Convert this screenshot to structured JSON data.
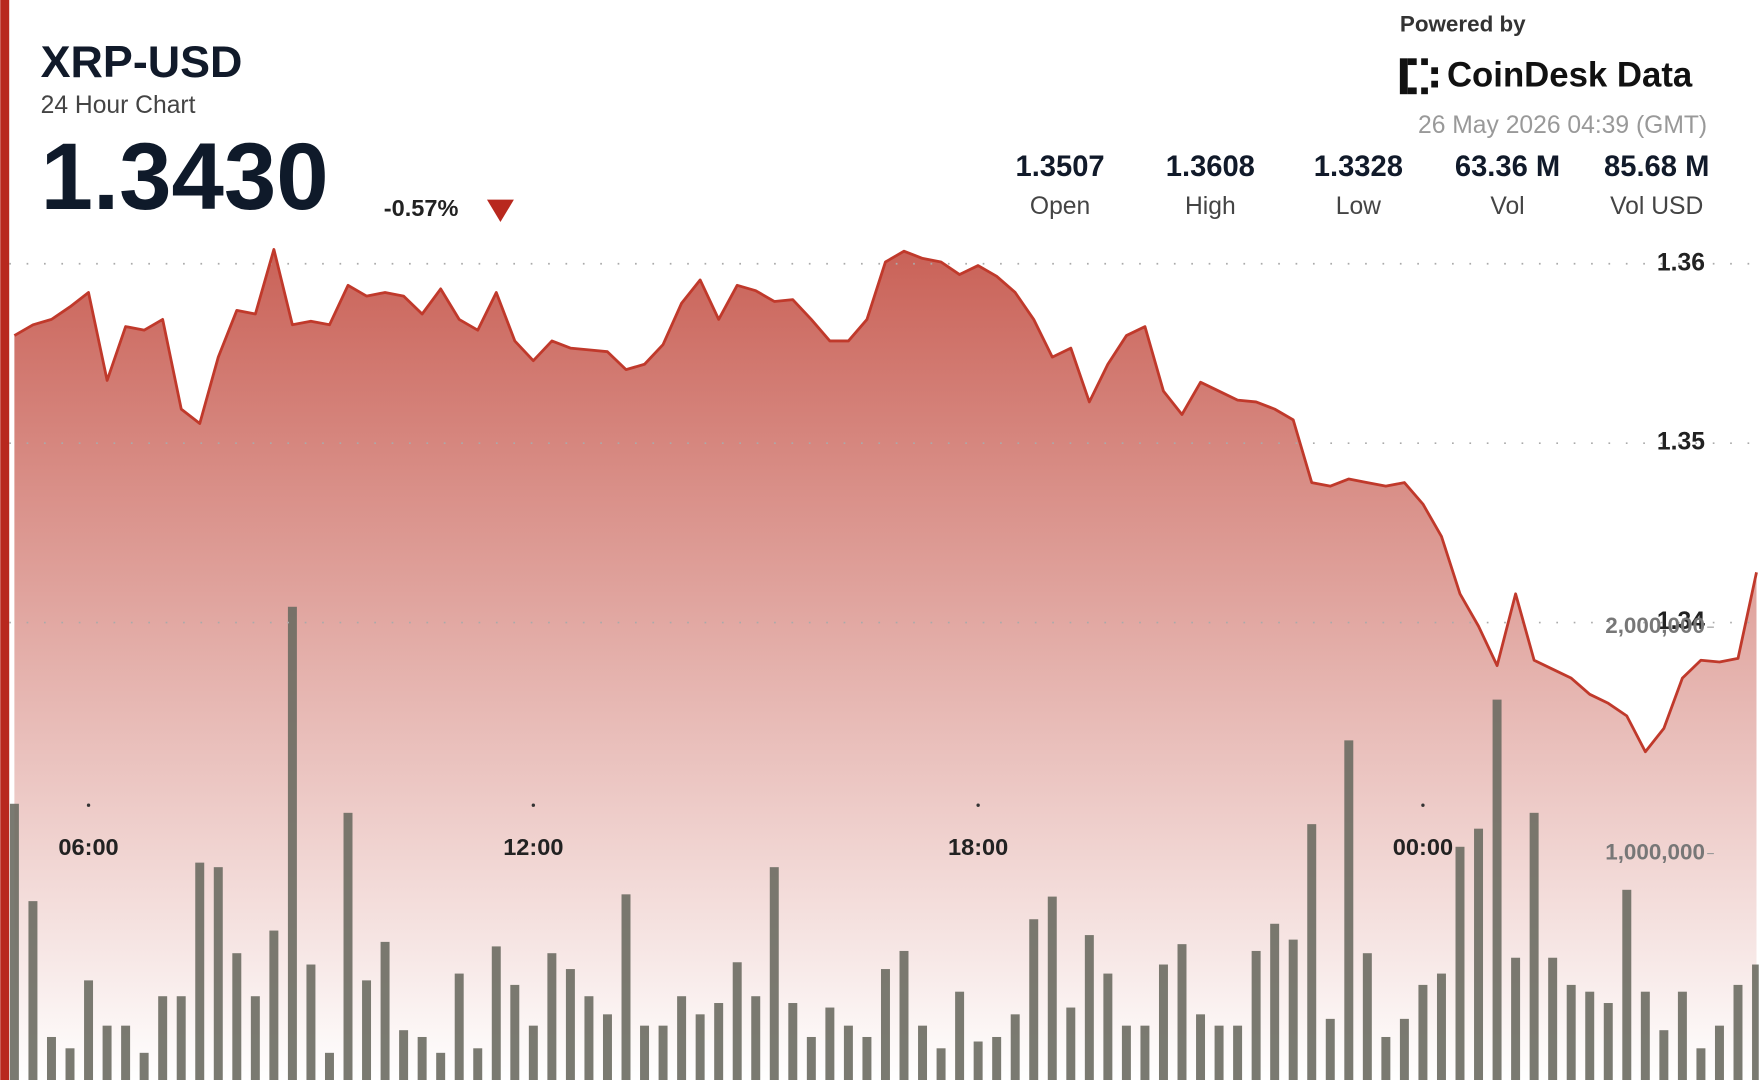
{
  "chart_data": {
    "type": "line",
    "title": "XRP-USD",
    "subtitle": "24 Hour Chart",
    "last_price": "1.3430",
    "change": "-0.57%",
    "powered_by": "Powered by",
    "brand": "CoinDesk Data",
    "timestamp": "26 May 2026 04:39 (GMT)",
    "stats": [
      {
        "value": "1.3507",
        "label": "Open"
      },
      {
        "value": "1.3608",
        "label": "High"
      },
      {
        "value": "1.3328",
        "label": "Low"
      },
      {
        "value": "63.36 M",
        "label": "Vol"
      },
      {
        "value": "85.68 M",
        "label": "Vol USD"
      }
    ],
    "x": [
      5,
      5.25,
      5.5,
      5.75,
      6,
      6.25,
      6.5,
      6.75,
      7,
      7.25,
      7.5,
      7.75,
      8,
      8.25,
      8.5,
      8.75,
      9,
      9.25,
      9.5,
      9.75,
      10,
      10.25,
      10.5,
      10.75,
      11,
      11.25,
      11.5,
      11.75,
      12,
      12.25,
      12.5,
      12.75,
      13,
      13.25,
      13.5,
      13.75,
      14,
      14.25,
      14.5,
      14.75,
      15,
      15.25,
      15.5,
      15.75,
      16,
      16.25,
      16.5,
      16.75,
      17,
      17.25,
      17.5,
      17.75,
      18,
      18.25,
      18.5,
      18.75,
      19,
      19.25,
      19.5,
      19.75,
      20,
      20.25,
      20.5,
      20.75,
      21,
      21.25,
      21.5,
      21.75,
      22,
      22.25,
      22.5,
      22.75,
      23,
      23.25,
      23.5,
      23.75,
      24,
      24.25,
      24.5,
      24.75,
      25,
      25.25,
      25.5,
      25.75,
      26,
      26.25,
      26.5,
      26.75,
      27,
      27.25,
      27.5,
      27.75,
      28,
      28.25,
      28.5
    ],
    "xlim": [
      4.93,
      28.53
    ],
    "xticks": [
      {
        "value": 6,
        "label": "06:00"
      },
      {
        "value": 12,
        "label": "12:00"
      },
      {
        "value": 18,
        "label": "18:00"
      },
      {
        "value": 24,
        "label": "00:00"
      }
    ],
    "ylim": [
      1.3145,
      1.3612
    ],
    "yticks": [
      1.34,
      1.35,
      1.36
    ],
    "y2lim": [
      0,
      3700000
    ],
    "y2ticks": [
      {
        "value": 1000000,
        "label": "1,000,000"
      },
      {
        "value": 2000000,
        "label": "2,000,000"
      }
    ],
    "grid": true,
    "series": [
      {
        "type": "line",
        "color": "#c0392b",
        "values": [
          1.356,
          1.3566,
          1.3569,
          1.3576,
          1.3584,
          1.3535,
          1.3565,
          1.3563,
          1.3569,
          1.3519,
          1.3511,
          1.3548,
          1.3574,
          1.3572,
          1.3608,
          1.3566,
          1.3568,
          1.3566,
          1.3588,
          1.3582,
          1.3584,
          1.3582,
          1.3572,
          1.3586,
          1.3569,
          1.3563,
          1.3584,
          1.3557,
          1.3546,
          1.3557,
          1.3553,
          1.3552,
          1.3551,
          1.3541,
          1.3544,
          1.3555,
          1.3578,
          1.3591,
          1.3569,
          1.3588,
          1.3585,
          1.3579,
          1.358,
          1.3569,
          1.3557,
          1.3557,
          1.3569,
          1.3601,
          1.3607,
          1.3603,
          1.3601,
          1.3594,
          1.3599,
          1.3593,
          1.3584,
          1.3569,
          1.3548,
          1.3553,
          1.3523,
          1.3544,
          1.356,
          1.3565,
          1.3529,
          1.3516,
          1.3534,
          1.3529,
          1.3524,
          1.3523,
          1.3519,
          1.3513,
          1.3478,
          1.3476,
          1.348,
          1.3478,
          1.3476,
          1.3478,
          1.3466,
          1.3448,
          1.3416,
          1.3398,
          1.3376,
          1.3416,
          1.3379,
          1.3374,
          1.3369,
          1.336,
          1.3355,
          1.3348,
          1.3328,
          1.3341,
          1.3369,
          1.3379,
          1.3378,
          1.338,
          1.3428
        ]
      },
      {
        "type": "bar",
        "axis": "y2",
        "color": "#6b6b62",
        "values": [
          1220000,
          790000,
          190000,
          140000,
          440000,
          240000,
          240000,
          120000,
          370000,
          370000,
          960000,
          940000,
          560000,
          370000,
          660000,
          2090000,
          510000,
          120000,
          1180000,
          440000,
          610000,
          220000,
          190000,
          120000,
          470000,
          140000,
          590000,
          420000,
          240000,
          560000,
          490000,
          370000,
          290000,
          820000,
          240000,
          240000,
          370000,
          290000,
          340000,
          520000,
          370000,
          940000,
          340000,
          190000,
          320000,
          240000,
          190000,
          490000,
          570000,
          240000,
          140000,
          390000,
          170000,
          190000,
          290000,
          710000,
          810000,
          320000,
          640000,
          470000,
          240000,
          240000,
          510000,
          600000,
          290000,
          240000,
          240000,
          570000,
          690000,
          620000,
          1130000,
          270000,
          1500000,
          560000,
          190000,
          270000,
          420000,
          470000,
          1030000,
          1110000,
          1680000,
          540000,
          1180000,
          540000,
          420000,
          390000,
          340000,
          840000,
          390000,
          220000,
          390000,
          140000,
          240000,
          420000,
          510000
        ]
      }
    ]
  }
}
